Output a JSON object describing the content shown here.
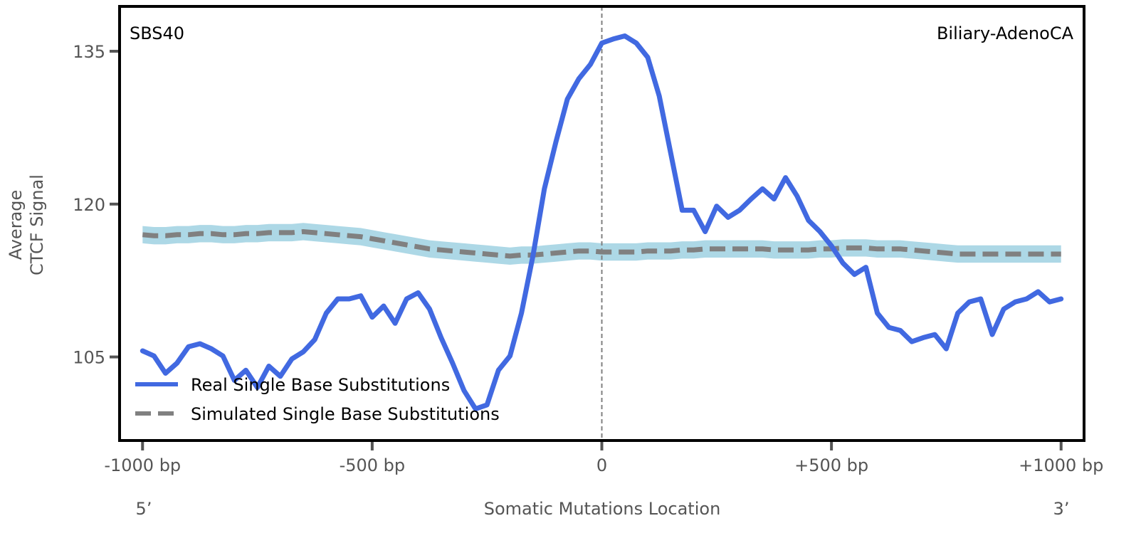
{
  "chart_data": {
    "type": "line",
    "annotation_left": "SBS40",
    "annotation_right": "Biliary-AdenoCA",
    "xlabel": "Somatic Mutations Location",
    "ylabel_line1": "Average",
    "ylabel_line2": "CTCF Signal",
    "x_end_left": "5’",
    "x_end_right": "3’",
    "xlim": [
      -1050,
      1050
    ],
    "ylim": [
      96.8,
      139.4
    ],
    "x_ticks": [
      {
        "value": -1000,
        "label": "-1000 bp"
      },
      {
        "value": -500,
        "label": "-500 bp"
      },
      {
        "value": 0,
        "label": "0"
      },
      {
        "value": 500,
        "label": "+500 bp"
      },
      {
        "value": 1000,
        "label": "+1000 bp"
      }
    ],
    "y_ticks": [
      {
        "value": 105,
        "label": "105"
      },
      {
        "value": 120,
        "label": "120"
      },
      {
        "value": 135,
        "label": "135"
      }
    ],
    "vline_x": 0,
    "grid": false,
    "legend_position": "lower-left",
    "legend": [
      {
        "label": "Real Single Base Substitutions",
        "color": "#4169e1",
        "style": "solid"
      },
      {
        "label": "Simulated Single Base Substitutions",
        "color": "#808080",
        "style": "dashed"
      }
    ],
    "colors": {
      "real": "#4169e1",
      "simulated": "#808080",
      "band": "#add8e6",
      "vline": "#808080"
    },
    "x": [
      -1000,
      -975,
      -950,
      -925,
      -900,
      -875,
      -850,
      -825,
      -800,
      -775,
      -750,
      -725,
      -700,
      -675,
      -650,
      -625,
      -600,
      -575,
      -550,
      -525,
      -500,
      -475,
      -450,
      -425,
      -400,
      -375,
      -350,
      -325,
      -300,
      -275,
      -250,
      -225,
      -200,
      -175,
      -150,
      -125,
      -100,
      -75,
      -50,
      -25,
      0,
      25,
      50,
      75,
      100,
      125,
      150,
      175,
      200,
      225,
      250,
      275,
      300,
      325,
      350,
      375,
      400,
      425,
      450,
      475,
      500,
      525,
      550,
      575,
      600,
      625,
      650,
      675,
      700,
      725,
      750,
      775,
      800,
      825,
      850,
      875,
      900,
      925,
      950,
      975,
      1000
    ],
    "series": [
      {
        "name": "Real Single Base Substitutions",
        "values": [
          105.6,
          105.1,
          103.4,
          104.4,
          106.0,
          106.3,
          105.8,
          105.1,
          102.7,
          103.7,
          102.0,
          104.1,
          103.1,
          104.8,
          105.5,
          106.7,
          109.3,
          110.7,
          110.7,
          111.0,
          108.9,
          110.0,
          108.3,
          110.7,
          111.3,
          109.7,
          106.9,
          104.4,
          101.7,
          99.9,
          100.3,
          103.7,
          105.1,
          109.3,
          114.9,
          121.5,
          126.1,
          130.3,
          132.3,
          133.7,
          135.8,
          136.2,
          136.5,
          135.8,
          134.4,
          130.6,
          125.0,
          119.4,
          119.4,
          117.3,
          119.8,
          118.7,
          119.4,
          120.5,
          121.5,
          120.5,
          122.6,
          120.8,
          118.4,
          117.3,
          115.9,
          114.2,
          113.1,
          113.8,
          109.3,
          107.9,
          107.6,
          106.5,
          106.9,
          107.2,
          105.8,
          109.3,
          110.4,
          110.7,
          107.2,
          109.7,
          110.4,
          110.7,
          111.4,
          110.4,
          110.7
        ]
      },
      {
        "name": "Simulated Single Base Substitutions",
        "values": [
          117.0,
          116.9,
          116.9,
          117.0,
          117.0,
          117.1,
          117.1,
          117.0,
          117.0,
          117.1,
          117.1,
          117.2,
          117.2,
          117.2,
          117.3,
          117.2,
          117.1,
          117.0,
          116.9,
          116.8,
          116.6,
          116.4,
          116.2,
          116.0,
          115.8,
          115.6,
          115.5,
          115.4,
          115.3,
          115.2,
          115.1,
          115.0,
          114.9,
          115.0,
          115.0,
          115.1,
          115.2,
          115.3,
          115.4,
          115.4,
          115.3,
          115.3,
          115.3,
          115.3,
          115.4,
          115.4,
          115.4,
          115.5,
          115.5,
          115.6,
          115.6,
          115.6,
          115.6,
          115.6,
          115.6,
          115.5,
          115.5,
          115.5,
          115.5,
          115.6,
          115.6,
          115.7,
          115.7,
          115.7,
          115.6,
          115.6,
          115.6,
          115.5,
          115.4,
          115.3,
          115.2,
          115.1,
          115.1,
          115.1,
          115.1,
          115.1,
          115.1,
          115.1,
          115.1,
          115.1,
          115.1
        ]
      }
    ],
    "simulated_band_halfwidth": 0.85
  }
}
